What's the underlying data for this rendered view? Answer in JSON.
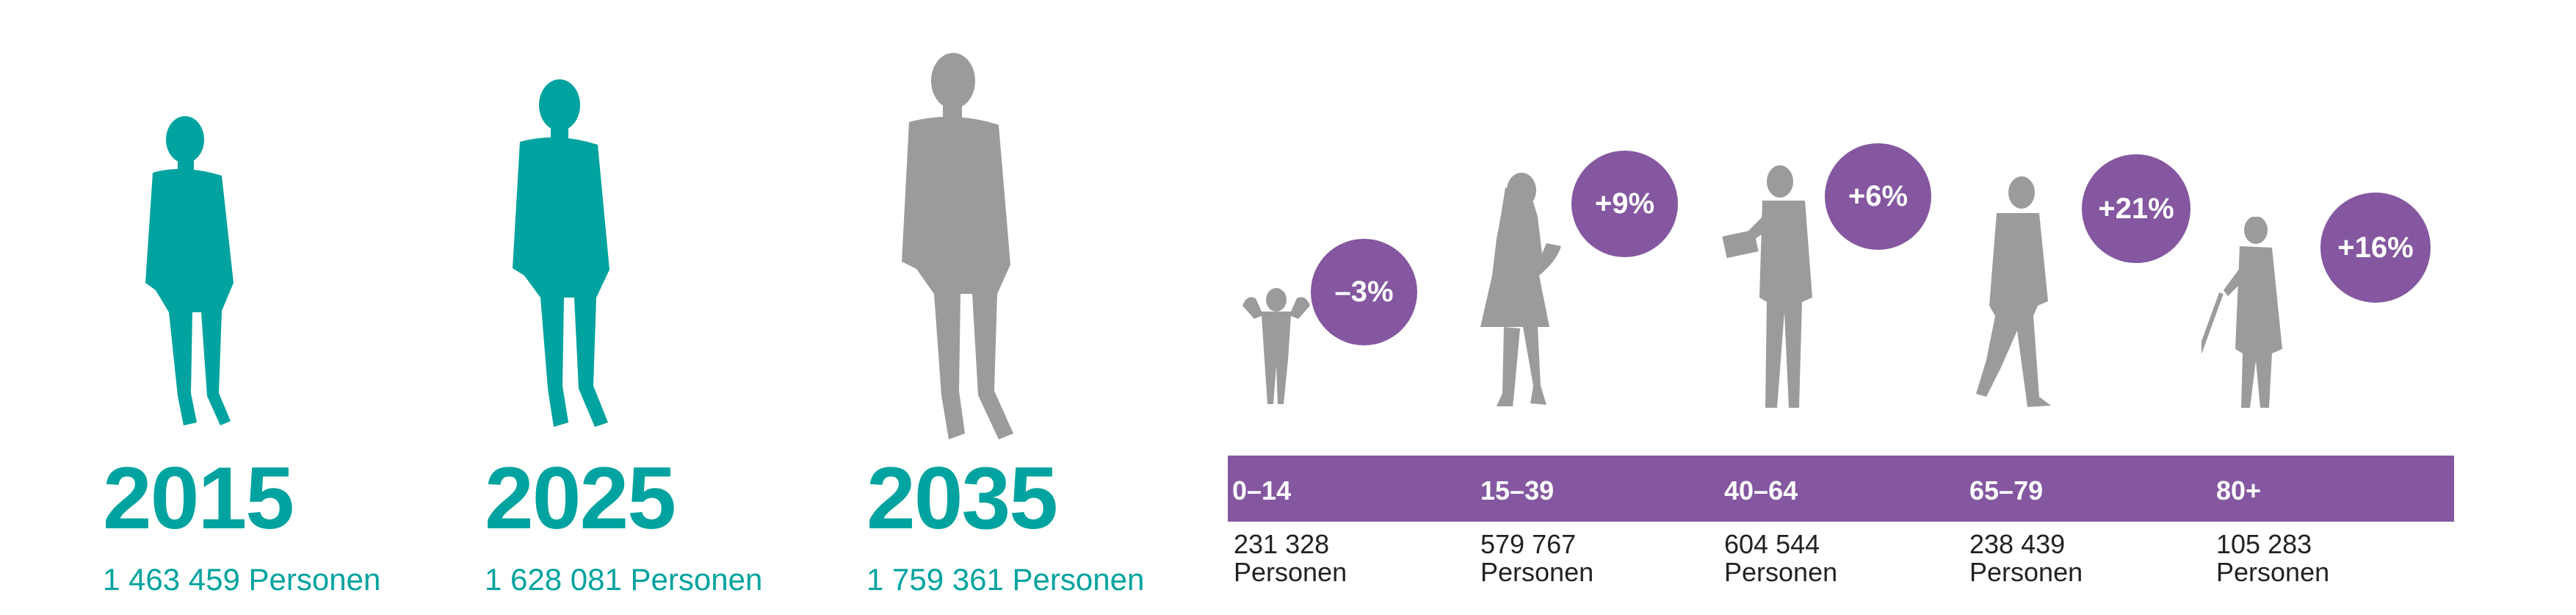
{
  "colors": {
    "teal": "#00a39f",
    "grey": "#9b9b9b",
    "purple": "#8457a0"
  },
  "years": [
    {
      "year": "2015",
      "persons": "1 463 459 Personen"
    },
    {
      "year": "2025",
      "persons": "1 628 081 Personen"
    },
    {
      "year": "2035",
      "persons": "1 759 361 Personen"
    }
  ],
  "age_groups": [
    {
      "label": "0–14",
      "count": "231 328",
      "unit": "Personen",
      "change": "–3%"
    },
    {
      "label": "15–39",
      "count": "579 767",
      "unit": "Personen",
      "change": "+9%"
    },
    {
      "label": "40–64",
      "count": "604 544",
      "unit": "Personen",
      "change": "+6%"
    },
    {
      "label": "65–79",
      "count": "238 439",
      "unit": "Personen",
      "change": "+21%"
    },
    {
      "label": "80+",
      "count": "105 283",
      "unit": "Personen",
      "change": "+16%"
    }
  ]
}
